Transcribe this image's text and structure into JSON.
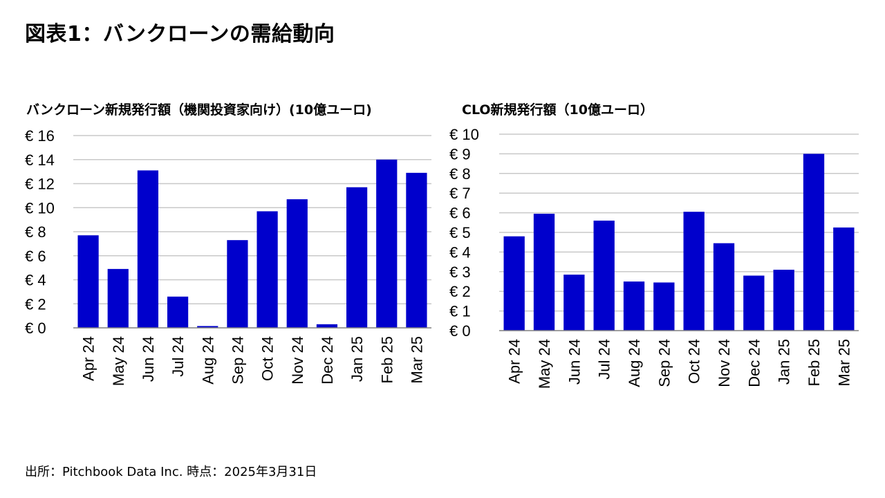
{
  "page": {
    "title": "図表1：バンクローンの需給動向",
    "source": "出所：Pitchbook Data Inc. 時点：2025年3月31日"
  },
  "colors": {
    "bar": "#0000CC",
    "grid": "#C8C8C8",
    "axis": "#000000"
  },
  "chart_data": [
    {
      "type": "bar",
      "title": "バンクローン新規発行額（機関投資家向け）(10億ユーロ)",
      "categories": [
        "Apr 24",
        "May 24",
        "Jun 24",
        "Jul 24",
        "Aug 24",
        "Sep 24",
        "Oct 24",
        "Nov 24",
        "Dec 24",
        "Jan 25",
        "Feb 25",
        "Mar 25"
      ],
      "values": [
        7.7,
        4.9,
        13.1,
        2.6,
        0.15,
        7.3,
        9.7,
        10.7,
        0.3,
        11.7,
        14.0,
        12.9
      ],
      "ylim": [
        0,
        16
      ],
      "yticks": [
        0,
        2,
        4,
        6,
        8,
        10,
        12,
        14,
        16
      ],
      "ytick_labels": [
        "€ 0",
        "€ 2",
        "€ 4",
        "€ 6",
        "€ 8",
        "€ 10",
        "€ 12",
        "€ 14",
        "€ 16"
      ],
      "grid": true,
      "legend": "none"
    },
    {
      "type": "bar",
      "title": "CLO新規発行額（10億ユーロ）",
      "categories": [
        "Apr 24",
        "May 24",
        "Jun 24",
        "Jul 24",
        "Aug 24",
        "Sep 24",
        "Oct 24",
        "Nov 24",
        "Dec 24",
        "Jan 25",
        "Feb 25",
        "Mar 25"
      ],
      "values": [
        4.8,
        5.95,
        2.85,
        5.6,
        2.5,
        2.45,
        6.05,
        4.45,
        2.8,
        3.1,
        9.0,
        5.25
      ],
      "ylim": [
        0,
        10
      ],
      "yticks": [
        0,
        1,
        2,
        3,
        4,
        5,
        6,
        7,
        8,
        9,
        10
      ],
      "ytick_labels": [
        "€ 0",
        "€ 1",
        "€ 2",
        "€ 3",
        "€ 4",
        "€ 5",
        "€ 6",
        "€ 7",
        "€ 8",
        "€ 9",
        "€ 10"
      ],
      "grid": true,
      "legend": "none"
    }
  ]
}
